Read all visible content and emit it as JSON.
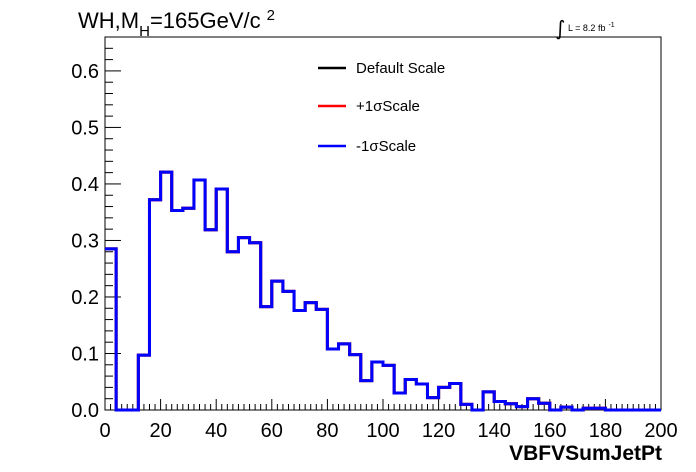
{
  "title": {
    "main": "WH,M",
    "subscript": "H",
    "rest": "=165GeV/c",
    "superscript": "2"
  },
  "luminosity": {
    "symbol": "∫",
    "text": "L = 8.2 fb",
    "superscript": "-1"
  },
  "legend": [
    {
      "label": "Default Scale",
      "color": "#000000"
    },
    {
      "label": "+1σScale",
      "color": "#ff0000"
    },
    {
      "label": "-1σScale",
      "color": "#0000ff"
    }
  ],
  "chart_data": {
    "type": "histogram",
    "xlabel": "VBFVSumJetPt",
    "ylabel": "",
    "xlim": [
      0,
      200
    ],
    "ylim": [
      0,
      0.66
    ],
    "bin_width": 4,
    "x_ticks": [
      0,
      20,
      40,
      60,
      80,
      100,
      120,
      140,
      160,
      180,
      200
    ],
    "x_tick_labels": [
      "0",
      "20",
      "40",
      "60",
      "80",
      "100",
      "120",
      "140",
      "160",
      "180",
      "200"
    ],
    "y_ticks": [
      0,
      0.1,
      0.2,
      0.3,
      0.4,
      0.5,
      0.6
    ],
    "y_tick_labels": [
      "0.0",
      "0.1",
      "0.2",
      "0.3",
      "0.4",
      "0.5",
      "0.6"
    ],
    "grid": false,
    "legend_position": "top-center",
    "series": [
      {
        "name": "Default Scale",
        "color": "#000000",
        "values": [
          0.285,
          0.0,
          0.0,
          0.097,
          0.372,
          0.421,
          0.353,
          0.357,
          0.407,
          0.319,
          0.391,
          0.28,
          0.305,
          0.296,
          0.183,
          0.228,
          0.21,
          0.176,
          0.19,
          0.178,
          0.108,
          0.117,
          0.098,
          0.052,
          0.085,
          0.079,
          0.03,
          0.054,
          0.046,
          0.022,
          0.04,
          0.047,
          0.01,
          0.0,
          0.032,
          0.015,
          0.011,
          0.006,
          0.02,
          0.012,
          0.0,
          0.005,
          0.0,
          0.003,
          0.003,
          0.0,
          0.0,
          0.0,
          0.0,
          0.0
        ]
      },
      {
        "name": "+1σScale",
        "color": "#ff0000",
        "values": [
          0.285,
          0.0,
          0.0,
          0.097,
          0.372,
          0.421,
          0.353,
          0.357,
          0.407,
          0.319,
          0.391,
          0.28,
          0.305,
          0.296,
          0.183,
          0.228,
          0.21,
          0.176,
          0.19,
          0.178,
          0.108,
          0.117,
          0.098,
          0.052,
          0.085,
          0.079,
          0.03,
          0.054,
          0.046,
          0.022,
          0.04,
          0.047,
          0.01,
          0.0,
          0.032,
          0.015,
          0.011,
          0.006,
          0.02,
          0.012,
          0.0,
          0.005,
          0.0,
          0.003,
          0.003,
          0.0,
          0.0,
          0.0,
          0.0,
          0.0
        ]
      },
      {
        "name": "-1σScale",
        "color": "#0000ff",
        "values": [
          0.285,
          0.0,
          0.0,
          0.097,
          0.372,
          0.421,
          0.353,
          0.357,
          0.407,
          0.319,
          0.391,
          0.28,
          0.305,
          0.296,
          0.183,
          0.228,
          0.21,
          0.176,
          0.19,
          0.178,
          0.108,
          0.117,
          0.098,
          0.052,
          0.085,
          0.079,
          0.03,
          0.054,
          0.046,
          0.022,
          0.04,
          0.047,
          0.01,
          0.0,
          0.032,
          0.015,
          0.011,
          0.006,
          0.02,
          0.012,
          0.0,
          0.005,
          0.0,
          0.003,
          0.003,
          0.0,
          0.0,
          0.0,
          0.0,
          0.0
        ]
      }
    ]
  }
}
